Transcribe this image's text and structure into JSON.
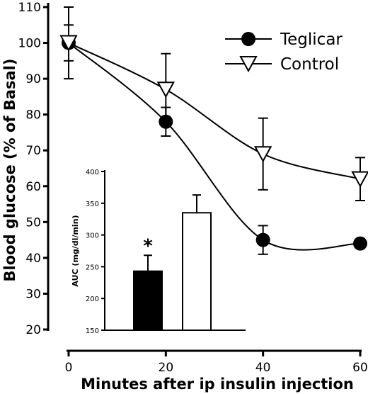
{
  "chart_data": [
    {
      "type": "line",
      "title": "",
      "xlabel": "Minutes after ip insulin injection",
      "ylabel": "Blood glucose (% of Basal)",
      "xlim": [
        0,
        60
      ],
      "ylim": [
        20,
        110
      ],
      "x_ticks": [
        "0",
        "20",
        "40",
        "60"
      ],
      "y_ticks": [
        "20",
        "30",
        "40",
        "50",
        "60",
        "70",
        "80",
        "90",
        "100",
        "110"
      ],
      "x": [
        0,
        20,
        40,
        60
      ],
      "legend_position": "top-right",
      "series": [
        {
          "name": "Teglicar",
          "marker": "filled-circle",
          "color": "#000000",
          "values": [
            100,
            78,
            45,
            44
          ],
          "errors": [
            5,
            4,
            4,
            0
          ]
        },
        {
          "name": "Control",
          "marker": "open-triangle-down",
          "color": "#000000",
          "values": [
            100,
            87,
            69,
            62
          ],
          "errors": [
            10,
            10,
            10,
            6
          ]
        }
      ],
      "grid": false
    },
    {
      "type": "bar",
      "title": "",
      "xlabel": "",
      "ylabel": "AUC (mg/dl/min)",
      "ylim": [
        150,
        400
      ],
      "y_ticks": [
        "150",
        "200",
        "250",
        "300",
        "350",
        "400"
      ],
      "categories": [
        "Teglicar",
        "Control"
      ],
      "values": [
        243,
        335
      ],
      "errors": [
        25,
        28
      ],
      "fills": [
        "#000000",
        "#ffffff"
      ],
      "annotation": "*",
      "grid": false
    }
  ]
}
